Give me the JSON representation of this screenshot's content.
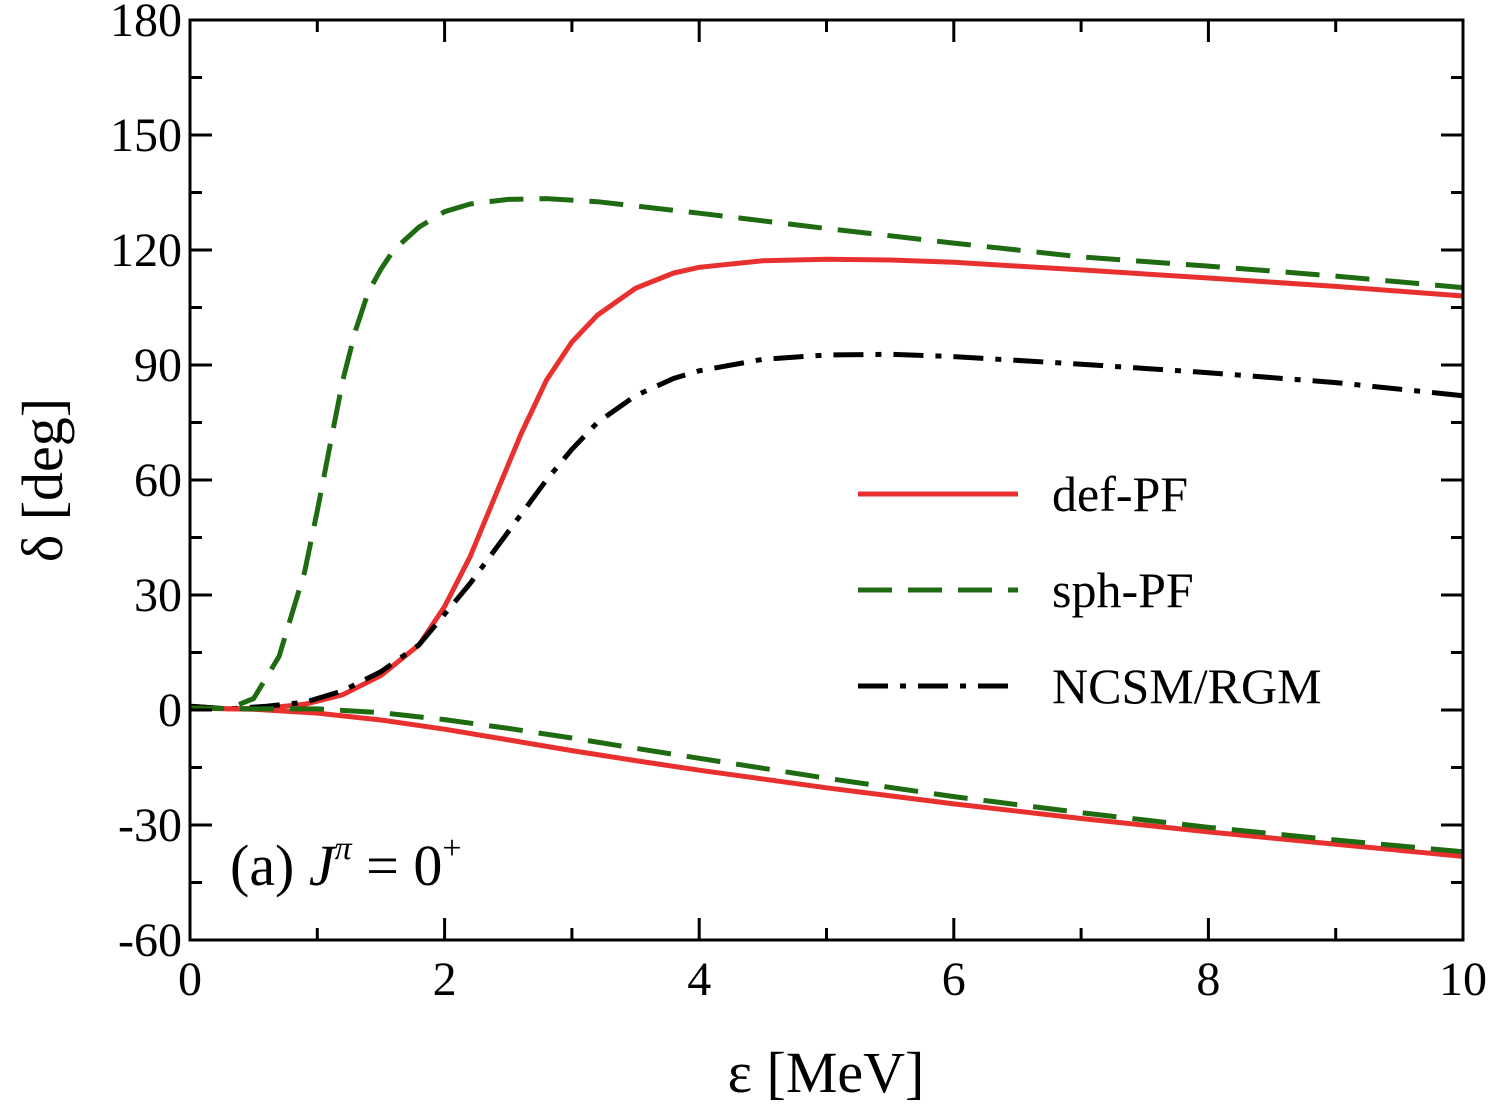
{
  "chart_data": {
    "type": "line",
    "xlabel": "ε [MeV]",
    "ylabel": "δ [deg]",
    "xlim": [
      0,
      10
    ],
    "ylim": [
      -60,
      180
    ],
    "xticks": [
      0,
      2,
      4,
      6,
      8,
      10
    ],
    "xtick_labels": [
      "0",
      "2",
      "4",
      "6",
      "8",
      "10"
    ],
    "yticks": [
      -60,
      -30,
      0,
      30,
      60,
      90,
      120,
      150,
      180
    ],
    "ytick_labels": [
      "-60",
      "-30",
      "0",
      "30",
      "60",
      "90",
      "120",
      "150",
      "180"
    ],
    "grid": false,
    "legend_position": "center-right",
    "panel_label": {
      "prefix": "(a) ",
      "symbol": "J",
      "superscript": "π",
      "equals": " = 0",
      "exponent": "+"
    },
    "series": [
      {
        "name": "def-PF",
        "color": "#e8312f",
        "dash": "solid",
        "x": [
          0,
          0.3,
          0.6,
          0.9,
          1.2,
          1.5,
          1.8,
          2.0,
          2.2,
          2.4,
          2.6,
          2.8,
          3.0,
          3.2,
          3.5,
          3.8,
          4.0,
          4.5,
          5.0,
          5.5,
          6.0,
          7.0,
          8.0,
          9.0,
          10.0
        ],
        "y": [
          1,
          0.3,
          0.5,
          1.5,
          4,
          9,
          17,
          27,
          40,
          56,
          72,
          86,
          96,
          103,
          110,
          114,
          115.5,
          117.2,
          117.6,
          117.4,
          116.8,
          114.8,
          112.7,
          110.5,
          108
        ]
      },
      {
        "name": "sph-PF",
        "color": "#1f6b12",
        "dash": "dashed",
        "x": [
          0,
          0.3,
          0.5,
          0.7,
          0.9,
          1.0,
          1.1,
          1.2,
          1.3,
          1.4,
          1.5,
          1.6,
          1.8,
          2.0,
          2.2,
          2.5,
          2.8,
          3.2,
          4.0,
          5.0,
          6.0,
          7.0,
          8.0,
          9.0,
          10.0
        ],
        "y": [
          1,
          0.3,
          3,
          14,
          36,
          52,
          69,
          86,
          99,
          109,
          115,
          120,
          126,
          130,
          132,
          133.2,
          133.4,
          132.6,
          129.6,
          125.6,
          121.8,
          118.2,
          115.8,
          113.2,
          110.2
        ]
      },
      {
        "name": "NCSM/RGM",
        "color": "#000000",
        "dash": "dashdot",
        "x": [
          0,
          0.3,
          0.6,
          0.9,
          1.2,
          1.5,
          1.8,
          2.0,
          2.2,
          2.4,
          2.6,
          2.8,
          3.0,
          3.2,
          3.5,
          3.8,
          4.0,
          4.5,
          5.0,
          5.5,
          6.0,
          7.0,
          8.0,
          9.0,
          10.0
        ],
        "y": [
          1,
          0.3,
          1,
          2,
          5,
          10,
          17,
          25,
          33,
          42,
          51,
          60,
          68,
          75,
          82,
          86.5,
          88.5,
          91.5,
          92.6,
          92.8,
          92.2,
          90.2,
          88,
          85.4,
          82
        ]
      },
      {
        "name": "",
        "legend": false,
        "color": "#e8312f",
        "dash": "solid",
        "x": [
          0,
          0.5,
          1.0,
          1.5,
          2.0,
          2.5,
          3.0,
          3.5,
          4.0,
          5.0,
          6.0,
          7.0,
          8.0,
          9.0,
          10.0
        ],
        "y": [
          0.5,
          0.2,
          -0.8,
          -2.6,
          -5,
          -7.8,
          -10.6,
          -13.2,
          -15.7,
          -20.3,
          -24.5,
          -28.3,
          -31.8,
          -35,
          -38.2
        ]
      },
      {
        "name": "",
        "legend": false,
        "color": "#1f6b12",
        "dash": "dashed",
        "x": [
          0,
          0.5,
          1.0,
          1.5,
          2.0,
          2.5,
          3.0,
          3.5,
          4.0,
          5.0,
          6.0,
          7.0,
          8.0,
          9.0,
          10.0
        ],
        "y": [
          0.5,
          0.3,
          0.3,
          -0.7,
          -2.5,
          -4.8,
          -7.3,
          -10,
          -12.6,
          -17.8,
          -22.6,
          -26.8,
          -30.6,
          -33.9,
          -37
        ]
      }
    ]
  }
}
